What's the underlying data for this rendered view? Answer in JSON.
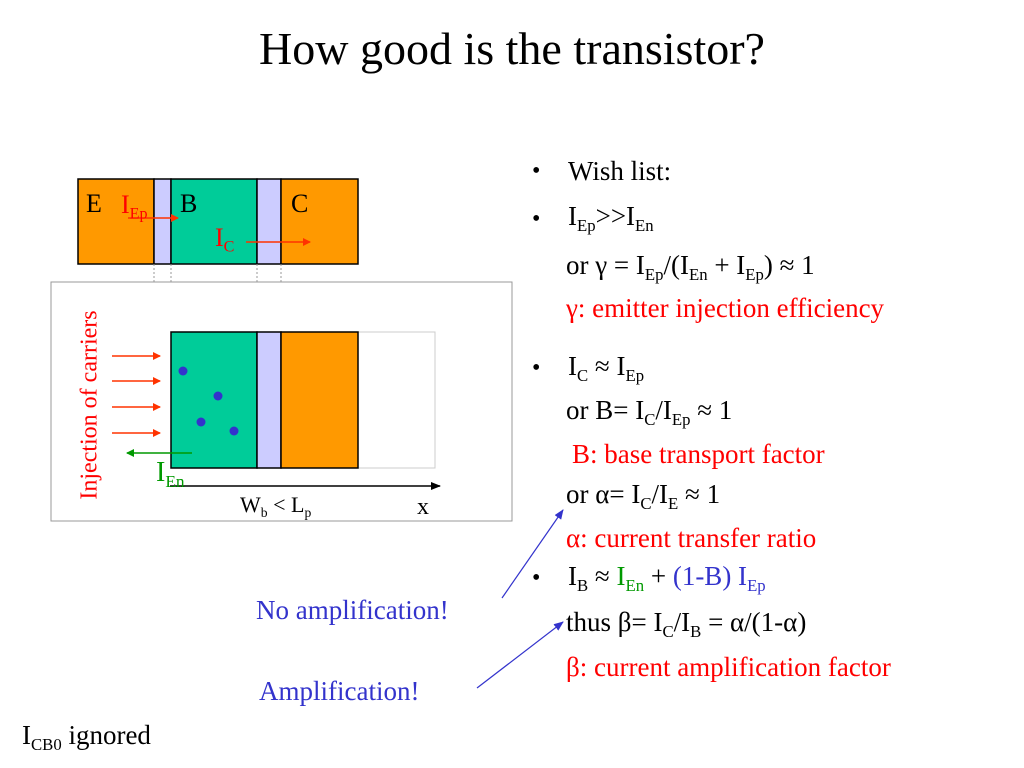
{
  "slide": {
    "title": "How good is the transistor?",
    "footnote": {
      "main": "I",
      "sub": "CB0",
      "rest": " ignored"
    }
  },
  "diagram": {
    "region_labels": {
      "emitter": "E",
      "base": "B",
      "collector": "C"
    },
    "i_ep": {
      "main": "I",
      "sub": "Ep"
    },
    "i_c": {
      "main": "I",
      "sub": "C"
    },
    "i_en": {
      "main": "I",
      "sub": "En"
    },
    "injection_label": "Injection of carriers",
    "width_label": {
      "w": "W",
      "w_sub": "b",
      "mid": " < L",
      "l_sub": "p"
    },
    "x_label": "x",
    "colors": {
      "orange": "#ff9900",
      "teal": "#00cc99",
      "junction": "#ccccff",
      "arrow_red": "#ff3300",
      "arrow_green": "#009900",
      "dot": "#3333cc"
    }
  },
  "annotations": {
    "no_amplification": "No amplification!",
    "amplification": "Amplification!"
  },
  "bullets": {
    "bullet_char": "•",
    "wish": "Wish list:",
    "b2": {
      "head": {
        "a": "I",
        "a_sub": "Ep",
        "b": ">>I",
        "b_sub": "En"
      },
      "eq": {
        "pre": "or γ = I",
        "s1": "Ep",
        "m1": "/(I",
        "s2": "En",
        "m2": " + I",
        "s3": "Ep",
        "post": ") ≈ 1"
      },
      "desc": "γ: emitter injection efficiency"
    },
    "b3": {
      "head": {
        "a": "I",
        "a_sub": "C",
        "b": " ≈ I",
        "b_sub": "Ep"
      },
      "eq1": {
        "pre": "or B= I",
        "s1": "C",
        "m1": "/I",
        "s2": "Ep",
        "post": " ≈ 1"
      },
      "desc1": "B: base transport factor",
      "eq2": {
        "pre": "or α= I",
        "s1": "C",
        "m1": "/I",
        "s2": "E",
        "post": " ≈ 1"
      },
      "desc2": "α: current transfer ratio"
    },
    "b4": {
      "head": {
        "a": "I",
        "a_sub": "B",
        "b": " ≈ ",
        "c": "I",
        "c_sub": "En",
        "d": " + ",
        "e": "(1-B) I",
        "e_sub": "Ep"
      },
      "eq": {
        "pre": "thus β= I",
        "s1": "C",
        "m1": "/I",
        "s2": "B",
        "post": " = α/(1-α)"
      },
      "desc": "β: current amplification factor"
    }
  }
}
